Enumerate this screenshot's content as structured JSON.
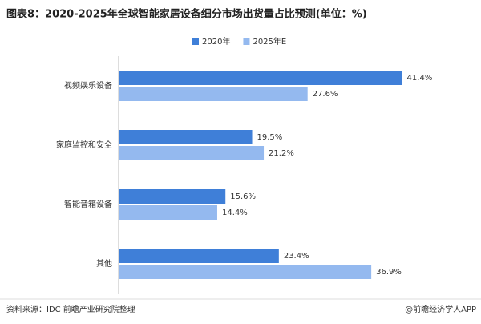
{
  "chart_data": {
    "type": "barh",
    "title": "图表8：2020-2025年全球智能家居设备细分市场出货量占比预测(单位：%)",
    "categories": [
      "视频娱乐设备",
      "家庭监控和安全",
      "智能音箱设备",
      "其他"
    ],
    "series": [
      {
        "name": "2020年",
        "color": "#3f7fd8",
        "values": [
          41.4,
          19.5,
          15.6,
          23.4
        ],
        "value_labels": [
          "41.4%",
          "19.5%",
          "15.6%",
          "23.4%"
        ]
      },
      {
        "name": "2025年E",
        "color": "#94b9ef",
        "values": [
          27.6,
          21.2,
          14.4,
          36.9
        ],
        "value_labels": [
          "27.6%",
          "21.2%",
          "14.4%",
          "36.9%"
        ]
      }
    ],
    "xlim": [
      0,
      50
    ],
    "source": "资料来源：IDC 前瞻产业研究院整理",
    "footer": "@前瞻经济学人APP"
  }
}
